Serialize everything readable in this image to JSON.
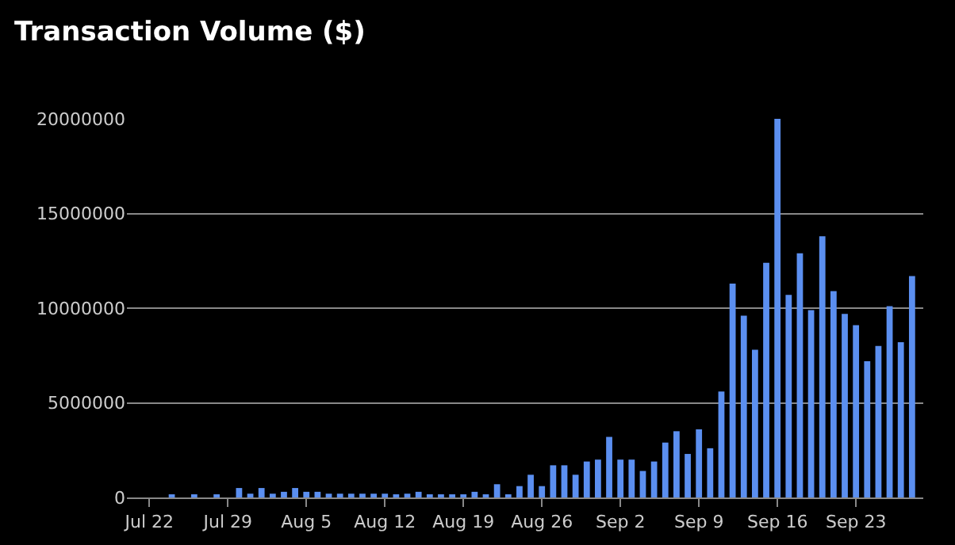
{
  "chart_data": {
    "type": "bar",
    "title": "Transaction Volume ($)",
    "x": [
      "--07-22",
      "--07-23",
      "--07-24",
      "--07-25",
      "--07-26",
      "--07-27",
      "--07-28",
      "--07-29",
      "--07-30",
      "--07-31",
      "--08-01",
      "--08-02",
      "--08-03",
      "--08-04",
      "--08-05",
      "--08-06",
      "--08-07",
      "--08-08",
      "--08-09",
      "--08-10",
      "--08-11",
      "--08-12",
      "--08-13",
      "--08-14",
      "--08-15",
      "--08-16",
      "--08-17",
      "--08-18",
      "--08-19",
      "--08-20",
      "--08-21",
      "--08-22",
      "--08-23",
      "--08-24",
      "--08-25",
      "--08-26",
      "--08-27",
      "--08-28",
      "--08-29",
      "--08-30",
      "--08-31",
      "--09-01",
      "--09-02",
      "--09-03",
      "--09-04",
      "--09-05",
      "--09-06",
      "--09-07",
      "--09-08",
      "--09-09",
      "--09-10",
      "--09-11",
      "--09-12",
      "--09-13",
      "--09-14",
      "--09-15",
      "--09-16",
      "--09-17",
      "--09-18",
      "--09-19",
      "--09-20",
      "--09-21",
      "--09-22",
      "--09-23",
      "--09-24",
      "--09-25",
      "--09-26",
      "--09-27",
      "--09-28"
    ],
    "values": [
      0,
      0,
      100000,
      0,
      100000,
      0,
      100000,
      0,
      500000,
      200000,
      500000,
      200000,
      300000,
      500000,
      300000,
      300000,
      200000,
      200000,
      200000,
      200000,
      200000,
      200000,
      100000,
      200000,
      300000,
      100000,
      100000,
      100000,
      100000,
      300000,
      100000,
      700000,
      100000,
      600000,
      1200000,
      600000,
      1700000,
      1700000,
      1200000,
      1900000,
      2000000,
      3200000,
      2000000,
      2000000,
      1400000,
      1900000,
      2900000,
      3500000,
      2300000,
      3600000,
      2600000,
      5600000,
      11300000,
      9600000,
      7800000,
      12400000,
      20000000,
      10700000,
      12900000,
      9900000,
      13800000,
      10900000,
      9700000,
      9100000,
      7200000,
      8000000,
      10100000,
      8200000,
      11700000
    ],
    "color": "#5b8ff0",
    "xlim": [
      "--07-20",
      "--09-29"
    ],
    "xticks": [
      {
        "value": "--07-22",
        "label": "Jul 22"
      },
      {
        "value": "--07-29",
        "label": "Jul 29"
      },
      {
        "value": "--08-05",
        "label": "Aug 5"
      },
      {
        "value": "--08-12",
        "label": "Aug 12"
      },
      {
        "value": "--08-19",
        "label": "Aug 19"
      },
      {
        "value": "--08-26",
        "label": "Aug 26"
      },
      {
        "value": "--09-02",
        "label": "Sep 2"
      },
      {
        "value": "--09-09",
        "label": "Sep 9"
      },
      {
        "value": "--09-16",
        "label": "Sep 16"
      },
      {
        "value": "--09-23",
        "label": "Sep 23"
      }
    ],
    "ylim": [
      0,
      20000000
    ],
    "yticks": [
      0,
      5000000,
      10000000,
      15000000,
      20000000
    ],
    "grid": "y"
  }
}
